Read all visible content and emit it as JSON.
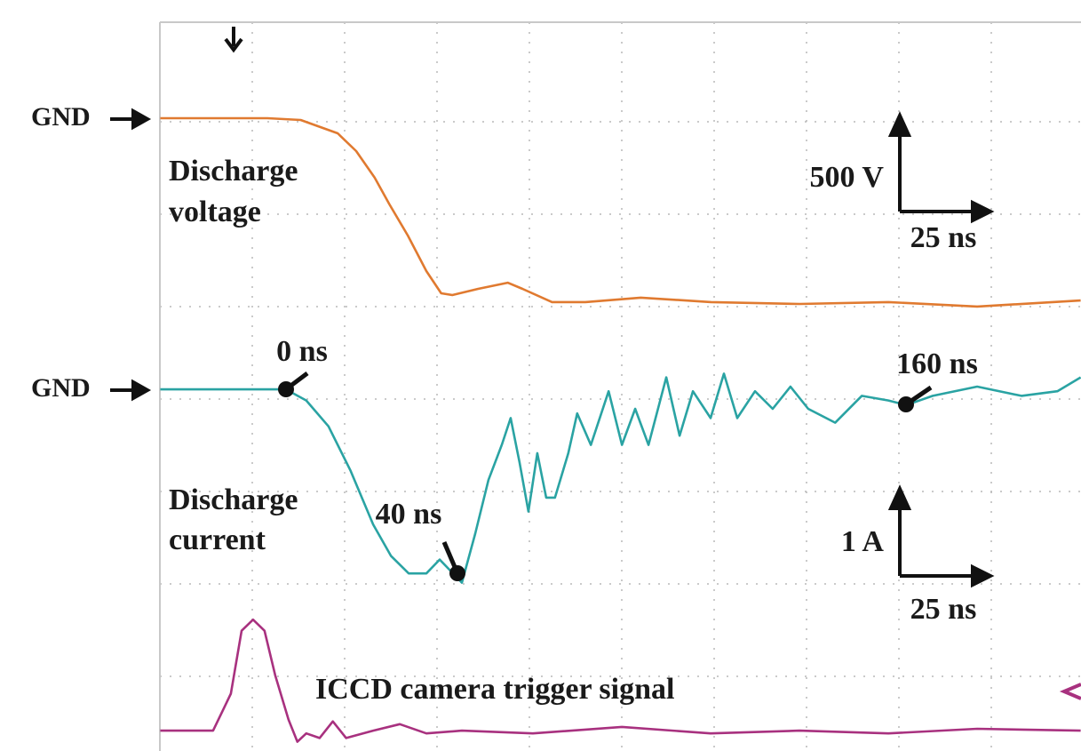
{
  "chart_data": {
    "type": "line",
    "xlim": [
      -34.1,
      215.1
    ],
    "series": [
      {
        "name": "Discharge voltage",
        "color": "#e07a30",
        "ylim": [
          -3423,
          519
        ],
        "x": [
          -34,
          -5,
          4,
          14,
          19,
          24,
          28,
          33,
          38,
          42,
          45,
          52,
          60,
          64,
          72,
          81,
          96,
          115,
          139,
          163,
          187,
          215
        ],
        "values": [
          0,
          0,
          -10,
          -82,
          -178,
          -322,
          -466,
          -635,
          -827,
          -947,
          -957,
          -923,
          -890,
          -923,
          -995,
          -995,
          -971,
          -995,
          -1005,
          -995,
          -1019,
          -986
        ]
      },
      {
        "name": "Discharge current",
        "color": "#2aa3a3",
        "ylim": [
          -3.91,
          3.97
        ],
        "x": [
          -34,
          0,
          5.5,
          11.5,
          17.5,
          23.6,
          28.4,
          33.2,
          38,
          41.6,
          44,
          47.6,
          51.2,
          54.8,
          58.4,
          60.8,
          63.2,
          65.6,
          68,
          70.4,
          72.8,
          76.4,
          78.8,
          82.5,
          87.3,
          90.9,
          94.5,
          98.1,
          102.9,
          106.5,
          110.1,
          114.9,
          118.5,
          122.1,
          126.9,
          131.7,
          136.5,
          141.3,
          148.6,
          155.8,
          163,
          167.8,
          175,
          187,
          199,
          208.7,
          215
        ],
        "values": [
          0,
          0,
          -0.12,
          -0.4,
          -0.88,
          -1.46,
          -1.8,
          -1.99,
          -1.99,
          -1.84,
          -1.94,
          -2.09,
          -1.56,
          -0.98,
          -0.6,
          -0.31,
          -0.79,
          -1.32,
          -0.69,
          -1.17,
          -1.17,
          -0.69,
          -0.26,
          -0.6,
          -0.02,
          -0.6,
          -0.21,
          -0.6,
          0.13,
          -0.5,
          -0.02,
          -0.31,
          0.17,
          -0.31,
          -0.02,
          -0.21,
          0.03,
          -0.21,
          -0.36,
          -0.07,
          -0.12,
          -0.17,
          -0.07,
          0.03,
          -0.07,
          -0.02,
          0.13
        ]
      },
      {
        "name": "ICCD camera trigger signal",
        "color": "#a8317f",
        "ylim": [
          -0.22,
          7.66
        ],
        "x": [
          -34,
          -19.7,
          -14.9,
          -12,
          -8.9,
          -5.8,
          -2.9,
          0.7,
          3.1,
          5.5,
          9.1,
          12.7,
          16.3,
          23.6,
          30.8,
          38,
          47.6,
          66.8,
          90.9,
          114.9,
          138.9,
          163,
          187,
          215
        ],
        "values": [
          0,
          0,
          0.4,
          1.08,
          1.2,
          1.08,
          0.6,
          0.12,
          -0.12,
          -0.03,
          -0.08,
          0.1,
          -0.08,
          0,
          0.07,
          -0.03,
          0,
          -0.03,
          0.04,
          -0.03,
          0,
          -0.03,
          0.02,
          0
        ]
      }
    ],
    "annotations": {
      "gnd_voltage": "GND",
      "gnd_current": "GND",
      "voltage_label_1": "Discharge",
      "voltage_label_2": "voltage",
      "current_label_1": "Discharge",
      "current_label_2": "current",
      "voltage_scale": "500 V",
      "voltage_time_scale": "25 ns",
      "current_scale": "1 A",
      "current_time_scale": "25 ns",
      "marker_0": "0 ns",
      "marker_40": "40 ns",
      "marker_160": "160 ns"
    }
  }
}
